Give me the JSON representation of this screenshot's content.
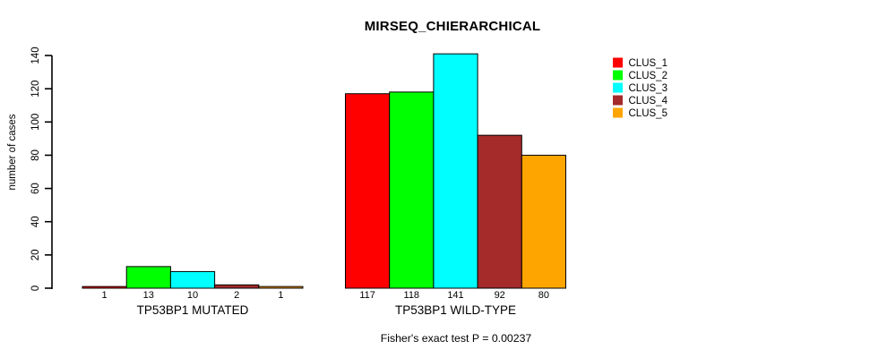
{
  "title": "MIRSEQ_CHIERARCHICAL",
  "annotation": "Fisher's exact test P = 0.00237",
  "chart_data": {
    "type": "bar",
    "title": "MIRSEQ_CHIERARCHICAL",
    "xlabel": "",
    "ylabel": "number of cases",
    "ylim": [
      0,
      140
    ],
    "y_ticks": [
      0,
      20,
      40,
      60,
      80,
      100,
      120,
      140
    ],
    "grid": false,
    "legend_position": "top-right",
    "series": [
      "CLUS_1",
      "CLUS_2",
      "CLUS_3",
      "CLUS_4",
      "CLUS_5"
    ],
    "colors": [
      "#FF0000",
      "#00FF00",
      "#00FFFF",
      "#A52A2A",
      "#FFA500"
    ],
    "groups": [
      {
        "label": "TP53BP1 MUTATED",
        "values": [
          1,
          13,
          10,
          2,
          1
        ]
      },
      {
        "label": "TP53BP1 WILD-TYPE",
        "values": [
          117,
          118,
          141,
          92,
          80
        ]
      }
    ],
    "bar_value_labels": true,
    "annotation": "Fisher's exact test P = 0.00237"
  }
}
